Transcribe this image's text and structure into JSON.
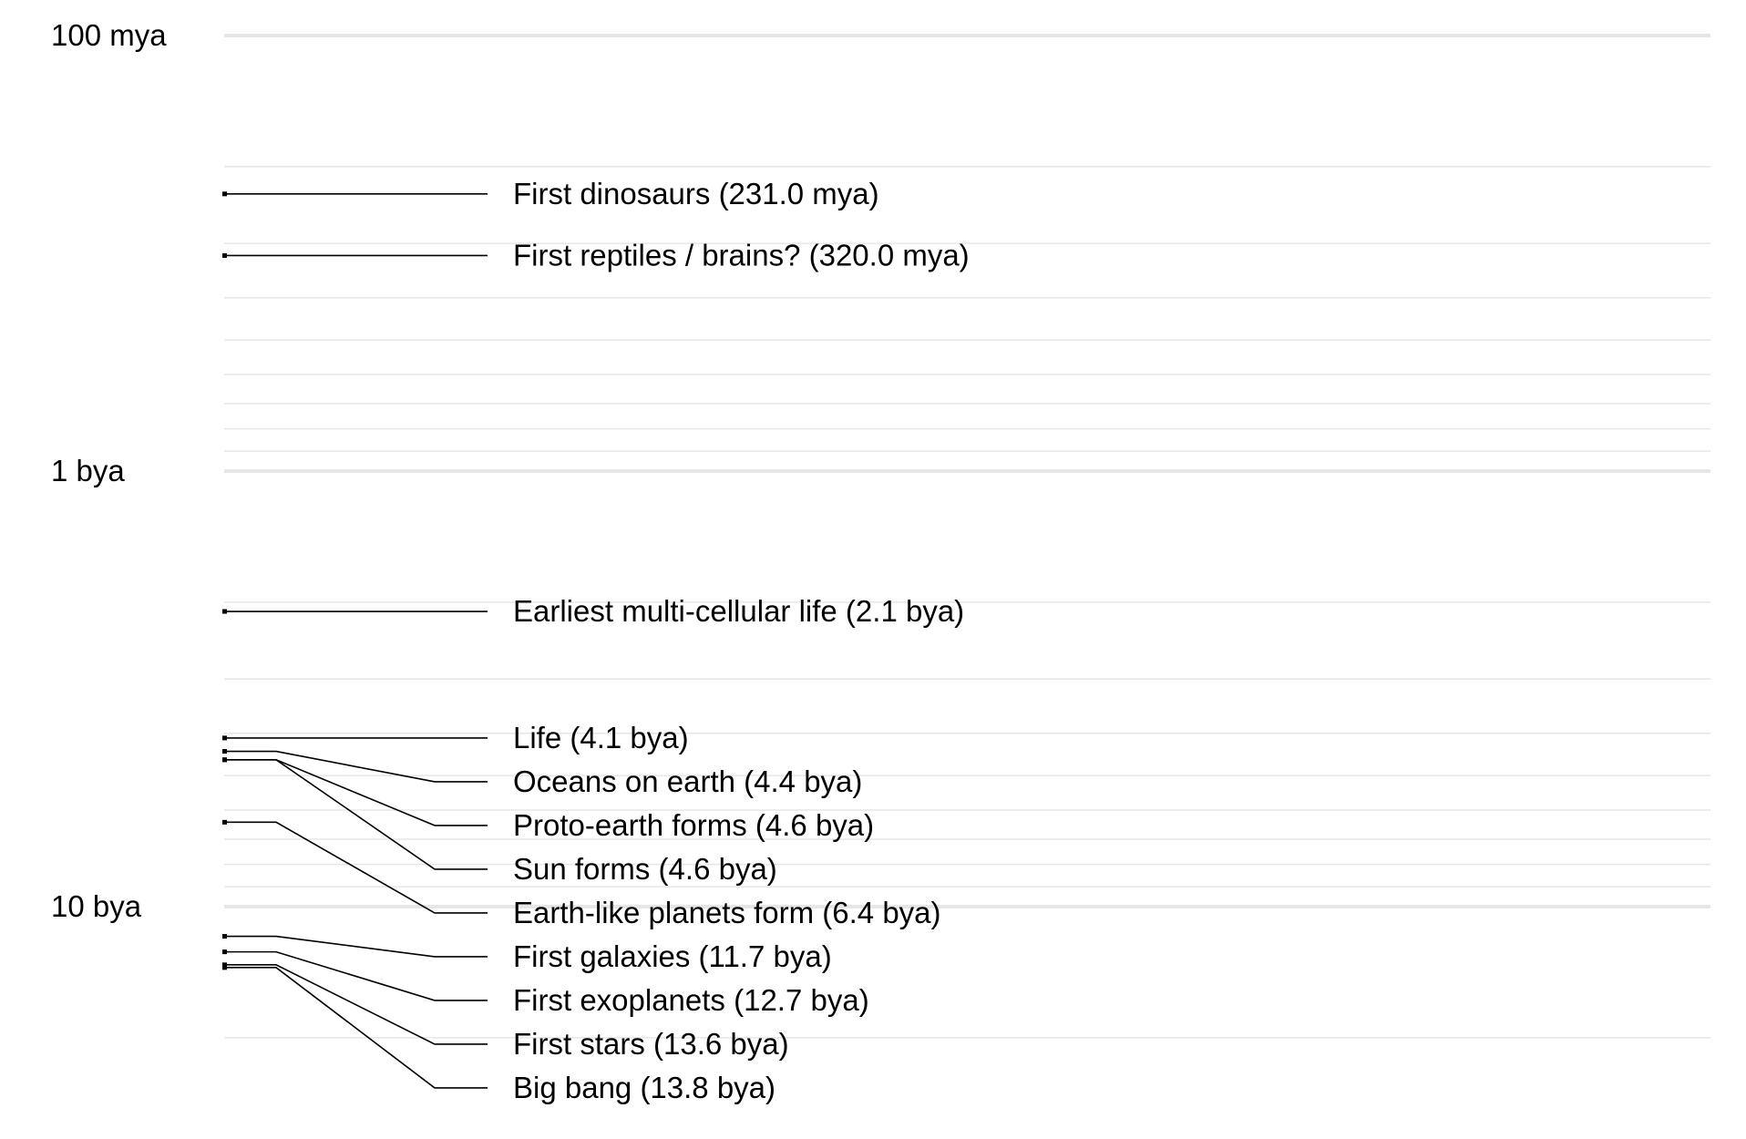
{
  "chart_data": {
    "type": "timeline",
    "scale": "log",
    "y_unit": "years ago",
    "ylim": [
      100000000,
      17000000000
    ],
    "major_ticks": [
      {
        "value": 100000000,
        "label": "100 mya"
      },
      {
        "value": 1000000000,
        "label": "1 bya"
      },
      {
        "value": 10000000000,
        "label": "10 bya"
      }
    ],
    "minor_ticks": [
      100000000,
      200000000,
      300000000,
      400000000,
      500000000,
      600000000,
      700000000,
      800000000,
      900000000,
      1000000000,
      2000000000,
      3000000000,
      4000000000,
      5000000000,
      6000000000,
      7000000000,
      8000000000,
      9000000000,
      10000000000,
      20000000000
    ],
    "events": [
      {
        "label": "First dinosaurs (231.0 mya)",
        "value": 231000000
      },
      {
        "label": "First reptiles / brains? (320.0 mya)",
        "value": 320000000
      },
      {
        "label": "Earliest multi-cellular life (2.1 bya)",
        "value": 2100000000
      },
      {
        "label": "Life (4.1 bya)",
        "value": 4100000000
      },
      {
        "label": "Oceans on earth (4.4 bya)",
        "value": 4400000000
      },
      {
        "label": "Proto-earth forms (4.6 bya)",
        "value": 4600000000
      },
      {
        "label": "Sun forms (4.6 bya)",
        "value": 4600000000
      },
      {
        "label": "Earth-like planets form (6.4 bya)",
        "value": 6400000000
      },
      {
        "label": "First galaxies (11.7 bya)",
        "value": 11700000000
      },
      {
        "label": "First exoplanets (12.7 bya)",
        "value": 12700000000
      },
      {
        "label": "First stars (13.6 bya)",
        "value": 13600000000
      },
      {
        "label": "Big bang (13.8 bya)",
        "value": 13800000000
      }
    ],
    "colors": {
      "gridline": "#e6e6e6",
      "major_gridline": "#e6e6e6",
      "connector": "#000000",
      "text": "#000000"
    }
  }
}
